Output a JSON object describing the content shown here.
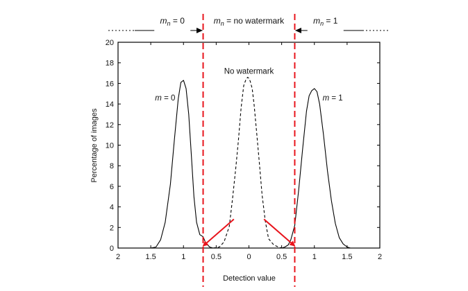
{
  "chart_data": {
    "type": "line",
    "xlabel": "Detection value",
    "ylabel": "Percentage of images",
    "xlim": [
      -2,
      2
    ],
    "ylim": [
      0,
      20
    ],
    "x_ticks": [
      -2,
      -1.5,
      -1,
      -0.5,
      0,
      0.5,
      1,
      1.5,
      2
    ],
    "x_tick_labels": [
      "2",
      "1.5",
      "1",
      "0.5",
      "0",
      "0.5",
      "1",
      "1.5",
      "2"
    ],
    "y_ticks": [
      0,
      2,
      4,
      6,
      8,
      10,
      12,
      14,
      16,
      18,
      20
    ],
    "y_tick_labels": [
      "0",
      "2",
      "4",
      "6",
      "8",
      "10",
      "12",
      "14",
      "16",
      "18",
      "20"
    ],
    "grid": false,
    "series": [
      {
        "style": "solid",
        "x": [
          -1.5,
          -1.42,
          -1.35,
          -1.28,
          -1.2,
          -1.14,
          -1.08,
          -1.04,
          -1.0,
          -0.96,
          -0.92,
          -0.88,
          -0.84,
          -0.8,
          -0.75,
          -0.7,
          -0.66,
          -0.6,
          -0.55,
          -0.5
        ],
        "y": [
          0,
          0.1,
          0.8,
          2.5,
          6.2,
          10.5,
          14.5,
          16.1,
          16.3,
          15.5,
          13,
          9,
          5,
          2.5,
          1.3,
          1.1,
          0.5,
          0.1,
          0,
          0
        ]
      },
      {
        "style": "dashed",
        "x": [
          -0.55,
          -0.45,
          -0.38,
          -0.3,
          -0.25,
          -0.2,
          -0.16,
          -0.12,
          -0.08,
          -0.05,
          -0.02,
          0,
          0.02,
          0.05,
          0.08,
          0.12,
          0.16,
          0.2,
          0.25,
          0.3,
          0.38,
          0.45,
          0.5,
          0.55
        ],
        "y": [
          0,
          0.1,
          0.6,
          2.1,
          4.8,
          7.8,
          10.5,
          13.6,
          15.8,
          16.3,
          16.6,
          16.5,
          16.2,
          15.5,
          13.9,
          11.1,
          8.2,
          5.2,
          2.6,
          0.9,
          0.3,
          0.1,
          0,
          0
        ]
      },
      {
        "style": "solid",
        "x": [
          0.5,
          0.55,
          0.6,
          0.64,
          0.7,
          0.76,
          0.82,
          0.88,
          0.92,
          0.96,
          1.0,
          1.04,
          1.08,
          1.14,
          1.2,
          1.26,
          1.32,
          1.38,
          1.44,
          1.5,
          1.55,
          1.6
        ],
        "y": [
          0,
          0.1,
          0.3,
          0.8,
          2.2,
          5.6,
          9.6,
          13.3,
          14.8,
          15.3,
          15.5,
          15.2,
          14,
          11,
          7.5,
          4.6,
          2.4,
          1,
          0.4,
          0.1,
          0,
          0
        ]
      }
    ],
    "thresholds": [
      -0.7,
      0.7
    ],
    "threshold_color": "#e8141c",
    "arrow_color": "#e8141c",
    "arrows": [
      {
        "from": [
          -0.23,
          2.8
        ],
        "to": [
          -0.7,
          0.2
        ]
      },
      {
        "from": [
          0.23,
          2.8
        ],
        "to": [
          0.7,
          0.2
        ]
      }
    ],
    "annotations": [
      {
        "id": "m0",
        "italic": "m",
        "text": " = 0",
        "x": -1.28,
        "y": 14.6
      },
      {
        "id": "nowm",
        "text": "No watermark",
        "x": 0,
        "y": 17.2
      },
      {
        "id": "m1",
        "italic": "m",
        "text": " = 1",
        "x": 1.28,
        "y": 14.6
      }
    ],
    "regions": [
      {
        "italic": "m",
        "sub": "n",
        "text": " = 0",
        "x": -1.17
      },
      {
        "italic": "m",
        "sub": "n",
        "text": " = no watermark",
        "x": 0
      },
      {
        "italic": "m",
        "sub": "n",
        "text": " = 1",
        "x": 1.17
      }
    ]
  }
}
